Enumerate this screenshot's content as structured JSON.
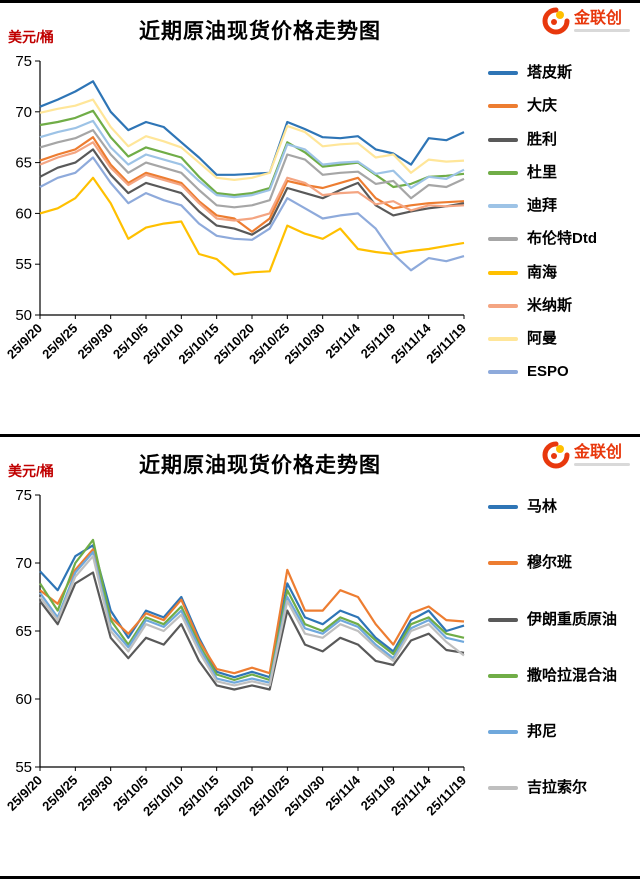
{
  "chart_data": [
    {
      "type": "line",
      "title": "近期原油现货价格走势图",
      "ylabel": "美元/桶",
      "logo_text": "金联创",
      "ylim": [
        50,
        75
      ],
      "y_step": 5,
      "grid": false,
      "legend_position": "right",
      "legend_gap": 13,
      "x_labels": [
        "25/9/20",
        "25/9/25",
        "25/9/30",
        "25/10/5",
        "25/10/10",
        "25/10/15",
        "25/10/20",
        "25/10/25",
        "25/10/30",
        "25/11/4",
        "25/11/9",
        "25/11/14",
        "25/11/19"
      ],
      "series": [
        {
          "name": "塔皮斯",
          "color": "#2E75B6",
          "values": [
            70.5,
            71.2,
            72.0,
            73.0,
            70.0,
            68.2,
            69.0,
            68.5,
            67.0,
            65.5,
            63.8,
            63.8,
            63.9,
            64.0,
            69.0,
            68.3,
            67.5,
            67.4,
            67.6,
            66.3,
            65.9,
            64.8,
            67.4,
            67.2,
            68.0
          ]
        },
        {
          "name": "大庆",
          "color": "#ED7D31",
          "values": [
            65.2,
            65.8,
            66.3,
            67.5,
            64.8,
            63.0,
            64.0,
            63.5,
            63.0,
            61.2,
            59.8,
            59.5,
            58.2,
            59.5,
            63.2,
            62.8,
            62.5,
            63.0,
            63.5,
            61.5,
            60.5,
            60.8,
            61.0,
            61.1,
            61.2
          ]
        },
        {
          "name": "胜利",
          "color": "#595959",
          "values": [
            63.6,
            64.5,
            65.0,
            66.3,
            63.8,
            62.0,
            63.0,
            62.5,
            62.0,
            60.2,
            58.8,
            58.5,
            57.9,
            59.0,
            62.5,
            62.0,
            61.5,
            62.3,
            63.0,
            60.8,
            59.8,
            60.2,
            60.5,
            60.7,
            61.0
          ]
        },
        {
          "name": "杜里",
          "color": "#70AD47",
          "values": [
            68.7,
            69.0,
            69.4,
            70.1,
            67.5,
            65.6,
            66.5,
            66.0,
            65.5,
            63.6,
            62.0,
            61.8,
            62.0,
            62.5,
            67.0,
            66.0,
            64.6,
            64.8,
            65.0,
            63.8,
            62.6,
            62.9,
            63.6,
            63.7,
            63.9
          ]
        },
        {
          "name": "迪拜",
          "color": "#9DC3E6",
          "values": [
            67.5,
            68.0,
            68.4,
            69.1,
            66.5,
            64.8,
            65.8,
            65.3,
            64.8,
            63.2,
            61.8,
            61.6,
            61.8,
            62.3,
            66.8,
            66.3,
            64.8,
            65.0,
            65.1,
            63.9,
            64.2,
            62.5,
            63.6,
            63.4,
            64.3
          ]
        },
        {
          "name": "布伦特Dtd",
          "color": "#A6A6A6",
          "values": [
            66.5,
            67.0,
            67.4,
            68.2,
            65.8,
            64.0,
            65.0,
            64.5,
            64.0,
            62.3,
            60.8,
            60.6,
            60.8,
            61.3,
            65.8,
            65.3,
            63.8,
            64.0,
            64.1,
            62.9,
            63.2,
            61.5,
            62.8,
            62.6,
            63.4
          ]
        },
        {
          "name": "南海",
          "color": "#FFC000",
          "values": [
            60.0,
            60.5,
            61.5,
            63.5,
            61.0,
            57.5,
            58.6,
            59.0,
            59.2,
            56.0,
            55.5,
            54.0,
            54.2,
            54.3,
            58.8,
            58.0,
            57.5,
            58.5,
            56.5,
            56.2,
            56.0,
            56.3,
            56.5,
            56.8,
            57.1
          ]
        },
        {
          "name": "米纳斯",
          "color": "#F4A582",
          "values": [
            64.8,
            65.5,
            66.0,
            67.0,
            64.5,
            62.8,
            63.8,
            63.3,
            62.8,
            61.0,
            59.5,
            59.3,
            59.5,
            60.0,
            63.5,
            63.0,
            61.8,
            62.0,
            62.1,
            60.9,
            61.2,
            60.3,
            60.8,
            60.7,
            60.8
          ]
        },
        {
          "name": "阿曼",
          "color": "#FFE699",
          "values": [
            69.9,
            70.3,
            70.6,
            71.2,
            68.5,
            66.6,
            67.6,
            67.1,
            66.5,
            65.0,
            63.5,
            63.3,
            63.5,
            64.0,
            68.6,
            68.0,
            66.6,
            66.8,
            66.9,
            65.5,
            65.8,
            64.0,
            65.3,
            65.1,
            65.2
          ]
        },
        {
          "name": "ESPO",
          "color": "#8EAADB",
          "values": [
            62.6,
            63.5,
            64.0,
            65.5,
            63.0,
            61.0,
            62.0,
            61.3,
            60.8,
            59.0,
            57.8,
            57.5,
            57.4,
            58.5,
            61.5,
            60.5,
            59.5,
            59.8,
            60.0,
            58.5,
            56.0,
            54.4,
            55.6,
            55.3,
            55.8
          ]
        }
      ]
    },
    {
      "type": "line",
      "title": "近期原油现货价格走势图",
      "ylabel": "美元/桶",
      "logo_text": "金联创",
      "ylim": [
        55,
        75
      ],
      "y_step": 5,
      "grid": false,
      "legend_position": "right",
      "legend_gap": 36,
      "x_labels": [
        "25/9/20",
        "25/9/25",
        "25/9/30",
        "25/10/5",
        "25/10/10",
        "25/10/15",
        "25/10/20",
        "25/10/25",
        "25/10/30",
        "25/11/4",
        "25/11/9",
        "25/11/14",
        "25/11/19"
      ],
      "series": [
        {
          "name": "马林",
          "color": "#2E75B6",
          "values": [
            69.4,
            68.0,
            70.5,
            71.3,
            66.5,
            64.5,
            66.5,
            66.0,
            67.5,
            64.5,
            62.0,
            61.6,
            62.0,
            61.6,
            68.5,
            66.0,
            65.5,
            66.5,
            66.0,
            64.5,
            63.5,
            65.8,
            66.5,
            65.0,
            65.4
          ]
        },
        {
          "name": "穆尔班",
          "color": "#ED7D31",
          "values": [
            68.0,
            67.0,
            69.5,
            71.0,
            66.0,
            64.8,
            66.3,
            65.8,
            67.3,
            64.3,
            62.2,
            61.9,
            62.3,
            61.9,
            69.5,
            66.5,
            66.5,
            68.0,
            67.5,
            65.5,
            64.0,
            66.3,
            66.8,
            65.8,
            65.7
          ]
        },
        {
          "name": "伊朗重质原油",
          "color": "#595959",
          "values": [
            67.2,
            65.5,
            68.5,
            69.3,
            64.5,
            63.0,
            64.5,
            64.0,
            65.5,
            62.8,
            61.0,
            60.7,
            61.0,
            60.7,
            66.5,
            64.0,
            63.5,
            64.5,
            64.0,
            62.8,
            62.5,
            64.3,
            64.8,
            63.6,
            63.4
          ]
        },
        {
          "name": "撒哈拉混合油",
          "color": "#70AD47",
          "values": [
            68.5,
            66.5,
            70.0,
            71.7,
            65.8,
            64.0,
            66.0,
            65.5,
            66.8,
            64.0,
            61.8,
            61.4,
            61.8,
            61.4,
            68.0,
            65.5,
            65.0,
            66.0,
            65.5,
            64.3,
            63.3,
            65.5,
            66.0,
            64.8,
            64.5
          ]
        },
        {
          "name": "邦尼",
          "color": "#6FA8DC",
          "values": [
            67.8,
            66.0,
            69.3,
            70.8,
            65.3,
            63.8,
            65.8,
            65.3,
            66.5,
            63.8,
            61.5,
            61.2,
            61.5,
            61.2,
            67.5,
            65.2,
            64.8,
            65.8,
            65.3,
            64.0,
            63.0,
            65.2,
            65.8,
            64.5,
            64.2
          ]
        },
        {
          "name": "吉拉索尔",
          "color": "#BFBFBF",
          "values": [
            67.5,
            65.8,
            69.0,
            70.5,
            65.0,
            63.5,
            65.5,
            65.0,
            66.2,
            63.5,
            61.3,
            61.0,
            61.3,
            61.0,
            67.2,
            64.8,
            64.5,
            65.5,
            65.0,
            63.8,
            62.8,
            65.0,
            65.5,
            64.2,
            63.2
          ]
        }
      ]
    }
  ]
}
